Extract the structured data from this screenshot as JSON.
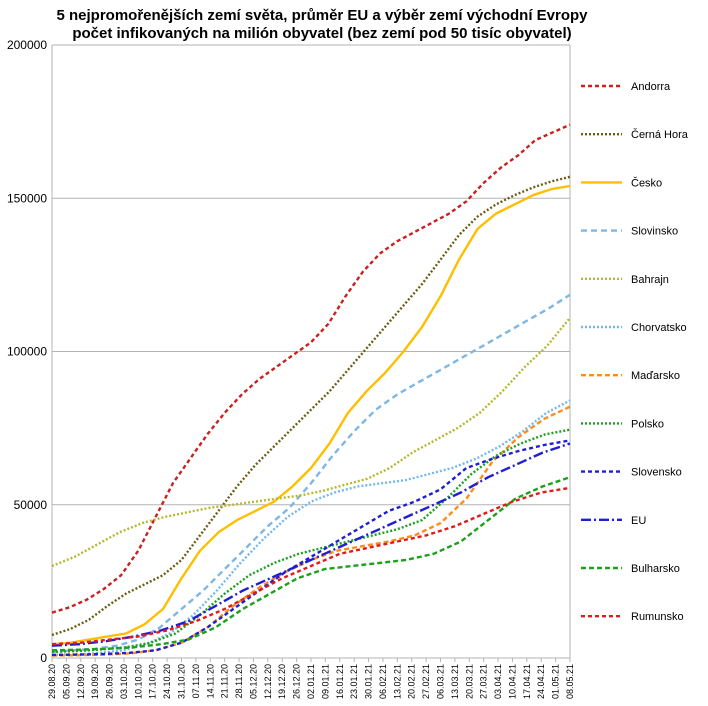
{
  "chart_data": {
    "type": "line",
    "title": "5 nejpromořenějších zemí světa, průměr EU a výběr zemí východní Evropy",
    "subtitle": "počet infikovaných na milión obyvatel (bez zemí pod 50 tisíc obyvatel)",
    "xlabel": "",
    "ylabel": "",
    "ylim": [
      0,
      200000
    ],
    "y_ticks": [
      "0",
      "50000",
      "100000",
      "150000",
      "200000"
    ],
    "grid": "horizontal",
    "legend_position": "right",
    "x_tick_labels": [
      "29.08.20",
      "05.09.20",
      "12.09.20",
      "19.09.20",
      "26.09.20",
      "03.10.20",
      "10.10.20",
      "17.10.20",
      "24.10.20",
      "31.10.20",
      "07.11.20",
      "14.11.20",
      "21.11.20",
      "28.11.20",
      "05.12.20",
      "12.12.20",
      "19.12.20",
      "26.12.20",
      "02.01.21",
      "09.01.21",
      "16.01.21",
      "23.01.21",
      "30.01.21",
      "06.02.21",
      "13.02.21",
      "20.02.21",
      "27.02.21",
      "06.03.21",
      "13.03.21",
      "20.03.21",
      "27.03.21",
      "03.04.21",
      "10.04.21",
      "17.04.21",
      "24.04.21",
      "01.05.21",
      "08.05.21"
    ],
    "series": [
      {
        "name": "Andorra",
        "color": "#c9211e",
        "dash": "4,3",
        "values": [
          14800,
          16500,
          19000,
          22500,
          27000,
          35000,
          46000,
          57000,
          65000,
          73000,
          80000,
          86000,
          91000,
          95000,
          99000,
          103000,
          109000,
          118000,
          126000,
          132000,
          136000,
          139000,
          142000,
          145000,
          149000,
          155000,
          160000,
          164000,
          169000,
          171500,
          174000
        ]
      },
      {
        "name": "Černá Hora",
        "color": "#6b5e14",
        "dash": "2,2",
        "values": [
          7500,
          9500,
          12500,
          17000,
          21000,
          24000,
          27000,
          32000,
          40000,
          48000,
          56000,
          63000,
          69000,
          75000,
          81000,
          87000,
          94000,
          101000,
          108000,
          115000,
          122000,
          130000,
          138000,
          144000,
          148000,
          151000,
          153500,
          155500,
          157000
        ]
      },
      {
        "name": "Česko",
        "color": "#ffbf00",
        "dash": "",
        "values": [
          4500,
          5000,
          6000,
          7000,
          8000,
          11000,
          16000,
          26000,
          35000,
          41000,
          45000,
          48000,
          51000,
          56000,
          62000,
          70000,
          80000,
          87000,
          93000,
          100000,
          108000,
          118000,
          130000,
          140000,
          145000,
          148000,
          151000,
          153000,
          154000
        ]
      },
      {
        "name": "Slovinsko",
        "color": "#7eb6e6",
        "dash": "6,4",
        "values": [
          2000,
          2500,
          3000,
          4000,
          6000,
          10000,
          16000,
          22000,
          29000,
          36000,
          43000,
          49000,
          57000,
          66000,
          74000,
          81000,
          86000,
          90000,
          94000,
          98000,
          102000,
          106000,
          110000,
          114000,
          118500
        ]
      },
      {
        "name": "Bahrajn",
        "color": "#b5b830",
        "dash": "2,2",
        "values": [
          30000,
          33000,
          37000,
          41000,
          44000,
          46000,
          47500,
          49000,
          50000,
          51000,
          52000,
          53000,
          54500,
          56500,
          58500,
          62000,
          67000,
          71000,
          75000,
          80000,
          87000,
          95000,
          102000,
          111000
        ]
      },
      {
        "name": "Chorvatsko",
        "color": "#73b8ee",
        "dash": "2,2",
        "values": [
          1000,
          1200,
          1600,
          2500,
          4500,
          8000,
          14000,
          22000,
          31000,
          39000,
          46000,
          51000,
          54000,
          56000,
          57000,
          58000,
          60000,
          62000,
          65000,
          69000,
          74000,
          80000,
          84000
        ]
      },
      {
        "name": "Maďarsko",
        "color": "#ff8c1a",
        "dash": "5,3",
        "values": [
          800,
          900,
          1100,
          1500,
          2500,
          5000,
          10000,
          17000,
          23000,
          28000,
          32000,
          35000,
          36500,
          38000,
          40000,
          44000,
          52000,
          64000,
          72000,
          78000,
          82000
        ]
      },
      {
        "name": "Polsko",
        "color": "#1ba11b",
        "dash": "2,2",
        "values": [
          2000,
          2300,
          2800,
          3500,
          5000,
          8000,
          14000,
          21000,
          27000,
          31000,
          34000,
          36000,
          38000,
          40000,
          42000,
          45000,
          52000,
          60000,
          66000,
          70000,
          73000,
          74500
        ]
      },
      {
        "name": "Slovensko",
        "color": "#1f1fd6",
        "dash": "4,3",
        "values": [
          1000,
          1100,
          1300,
          1700,
          2500,
          5000,
          10000,
          16000,
          22000,
          28000,
          33000,
          38000,
          43000,
          48000,
          51000,
          55000,
          62000,
          65000,
          67500,
          69500,
          71000
        ]
      },
      {
        "name": "EU",
        "color": "#1f1fd6",
        "dash": "10,3,2,3",
        "values": [
          4000,
          4500,
          5500,
          7000,
          9000,
          12000,
          17000,
          22000,
          26000,
          30000,
          34000,
          38000,
          42000,
          46000,
          50000,
          54000,
          59000,
          63000,
          67000,
          70000
        ]
      },
      {
        "name": "Bulharsko",
        "color": "#1ba11b",
        "dash": "5,3",
        "values": [
          2500,
          2700,
          3000,
          3500,
          4500,
          6000,
          10000,
          16000,
          21000,
          26000,
          29000,
          30000,
          31000,
          32000,
          34000,
          38000,
          45000,
          52000,
          56000,
          59000
        ]
      },
      {
        "name": "Rumunsko",
        "color": "#e31a1a",
        "dash": "4,3",
        "values": [
          4500,
          5000,
          6000,
          7000,
          9000,
          12000,
          16000,
          21000,
          26000,
          30000,
          34000,
          36000,
          38000,
          40000,
          43000,
          47000,
          51000,
          54000,
          55500
        ]
      }
    ]
  }
}
